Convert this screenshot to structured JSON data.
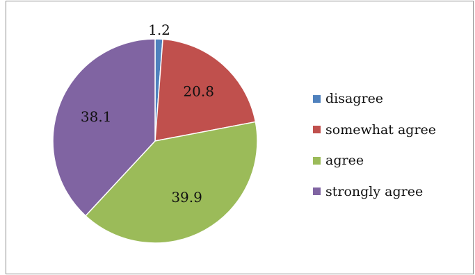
{
  "chart_data": {
    "type": "pie",
    "title": "",
    "categories": [
      "disagree",
      "somewhat agree",
      "agree",
      "strongly agree"
    ],
    "values": [
      1.2,
      20.8,
      39.9,
      38.1
    ],
    "data_labels": [
      "1.2",
      "20.8",
      "39.9",
      "38.1"
    ],
    "colors": [
      "#4f81bd",
      "#c0504d",
      "#9bbb59",
      "#8064a2"
    ],
    "legend": {
      "placement": "right",
      "entries": [
        "disagree",
        "somewhat agree",
        "agree",
        "strongly agree"
      ]
    }
  }
}
